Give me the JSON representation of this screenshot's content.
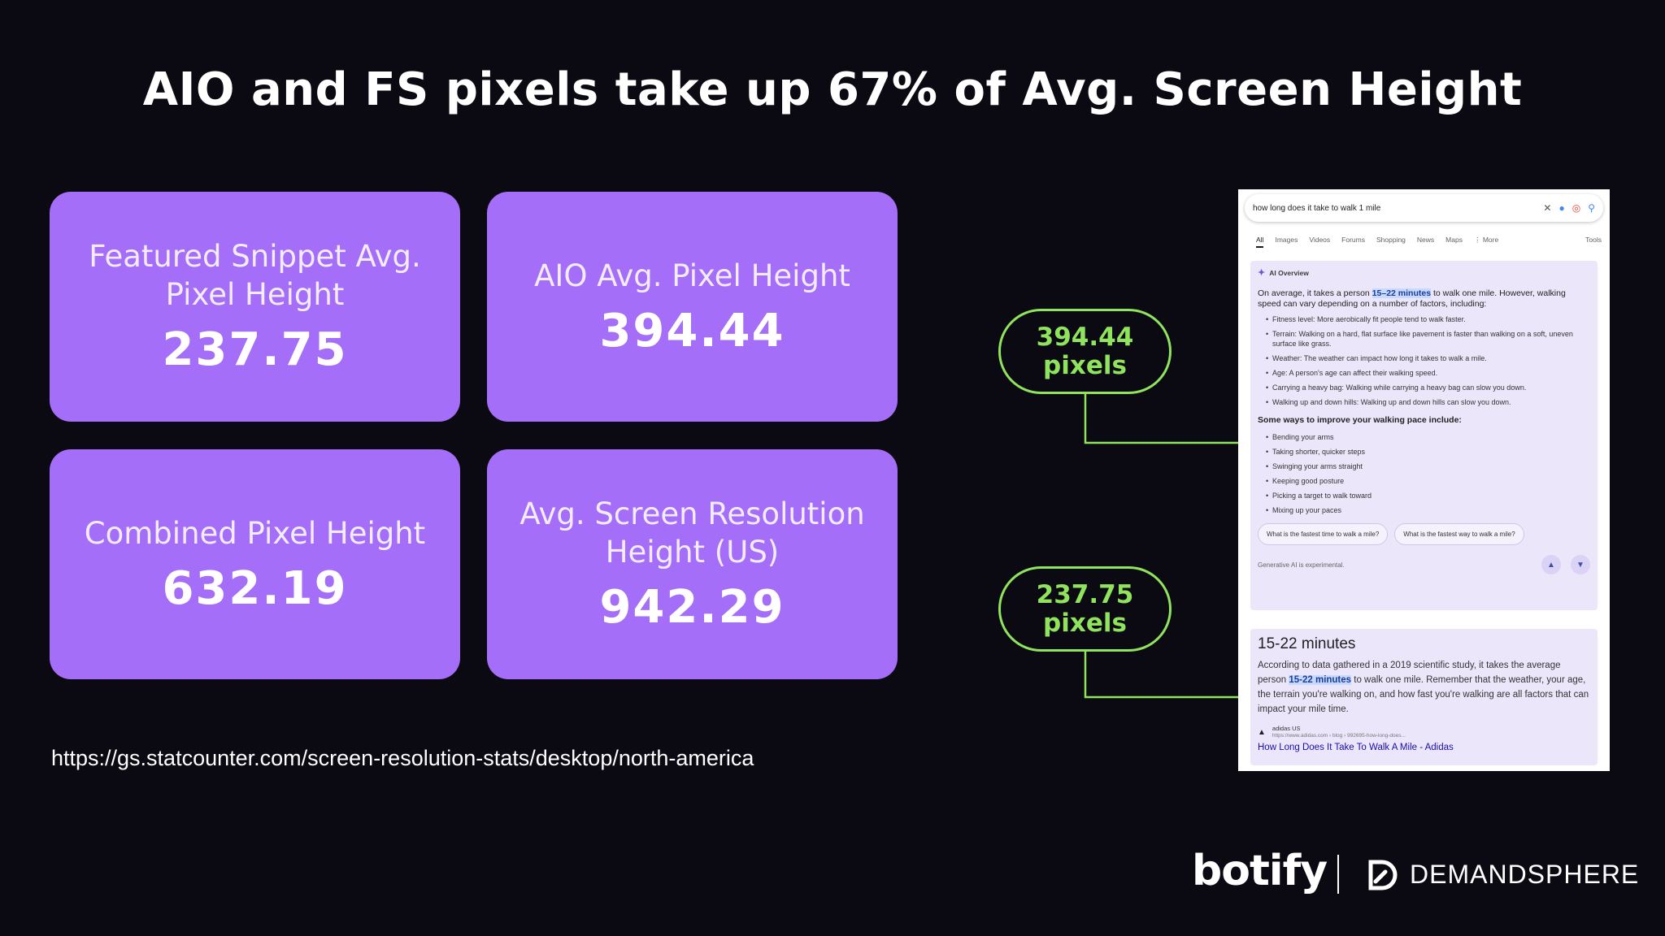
{
  "title": "AIO and FS pixels take up 67% of Avg. Screen Height",
  "cards": [
    {
      "label": "Featured Snippet Avg. Pixel Height",
      "value": "237.75"
    },
    {
      "label": "AIO Avg. Pixel Height",
      "value": "394.44"
    },
    {
      "label": "Combined Pixel Height",
      "value": "632.19"
    },
    {
      "label": "Avg. Screen Resolution Height (US)",
      "value": "942.29"
    }
  ],
  "source_url": "https://gs.statcounter.com/screen-resolution-stats/desktop/north-america",
  "callouts": [
    {
      "value": "394.44",
      "unit": "pixels"
    },
    {
      "value": "237.75",
      "unit": "pixels"
    }
  ],
  "serp": {
    "query": "how long does it take to walk 1 mile",
    "tabs": [
      "All",
      "Images",
      "Videos",
      "Forums",
      "Shopping",
      "News",
      "Maps",
      "⋮ More"
    ],
    "tools_label": "Tools",
    "aio": {
      "heading": "AI Overview",
      "intro_before": "On average, it takes a person ",
      "intro_highlight": "15–22 minutes",
      "intro_after": " to walk one mile. However, walking speed can vary depending on a number of factors, including:",
      "factors": [
        "Fitness level: More aerobically fit people tend to walk faster.",
        "Terrain: Walking on a hard, flat surface like pavement is faster than walking on a soft, uneven surface like grass.",
        "Weather: The weather can impact how long it takes to walk a mile.",
        "Age: A person's age can affect their walking speed.",
        "Carrying a heavy bag: Walking while carrying a heavy bag can slow you down.",
        "Walking up and down hills: Walking up and down hills can slow you down."
      ],
      "improve_heading": "Some ways to improve your walking pace include:",
      "tips": [
        "Bending your arms",
        "Taking shorter, quicker steps",
        "Swinging your arms straight",
        "Keeping good posture",
        "Picking a target to walk toward",
        "Mixing up your paces"
      ],
      "related": [
        "What is the fastest time to walk a mile?",
        "What is the fastest way to walk a mile?"
      ],
      "disclaimer": "Generative AI is experimental."
    },
    "fs": {
      "title": "15-22 minutes",
      "body_before": "According to data gathered in a 2019 scientific study, it takes the average person ",
      "body_highlight": "15-22 minutes",
      "body_after": " to walk one mile. Remember that the weather, your age, the terrain you're walking on, and how fast you're walking are all factors that can impact your mile time.",
      "site_name": "adidas US",
      "site_url": "https://www.adidas.com › blog › 992695-how-long-does...",
      "link_text": "How Long Does It Take To Walk A Mile - Adidas"
    }
  },
  "logos": {
    "botify": "botify",
    "demandsphere": "DEMANDSPHERE"
  },
  "colors": {
    "background": "#0b0a12",
    "card": "#a56ef8",
    "accent_green": "#8fe35d"
  }
}
